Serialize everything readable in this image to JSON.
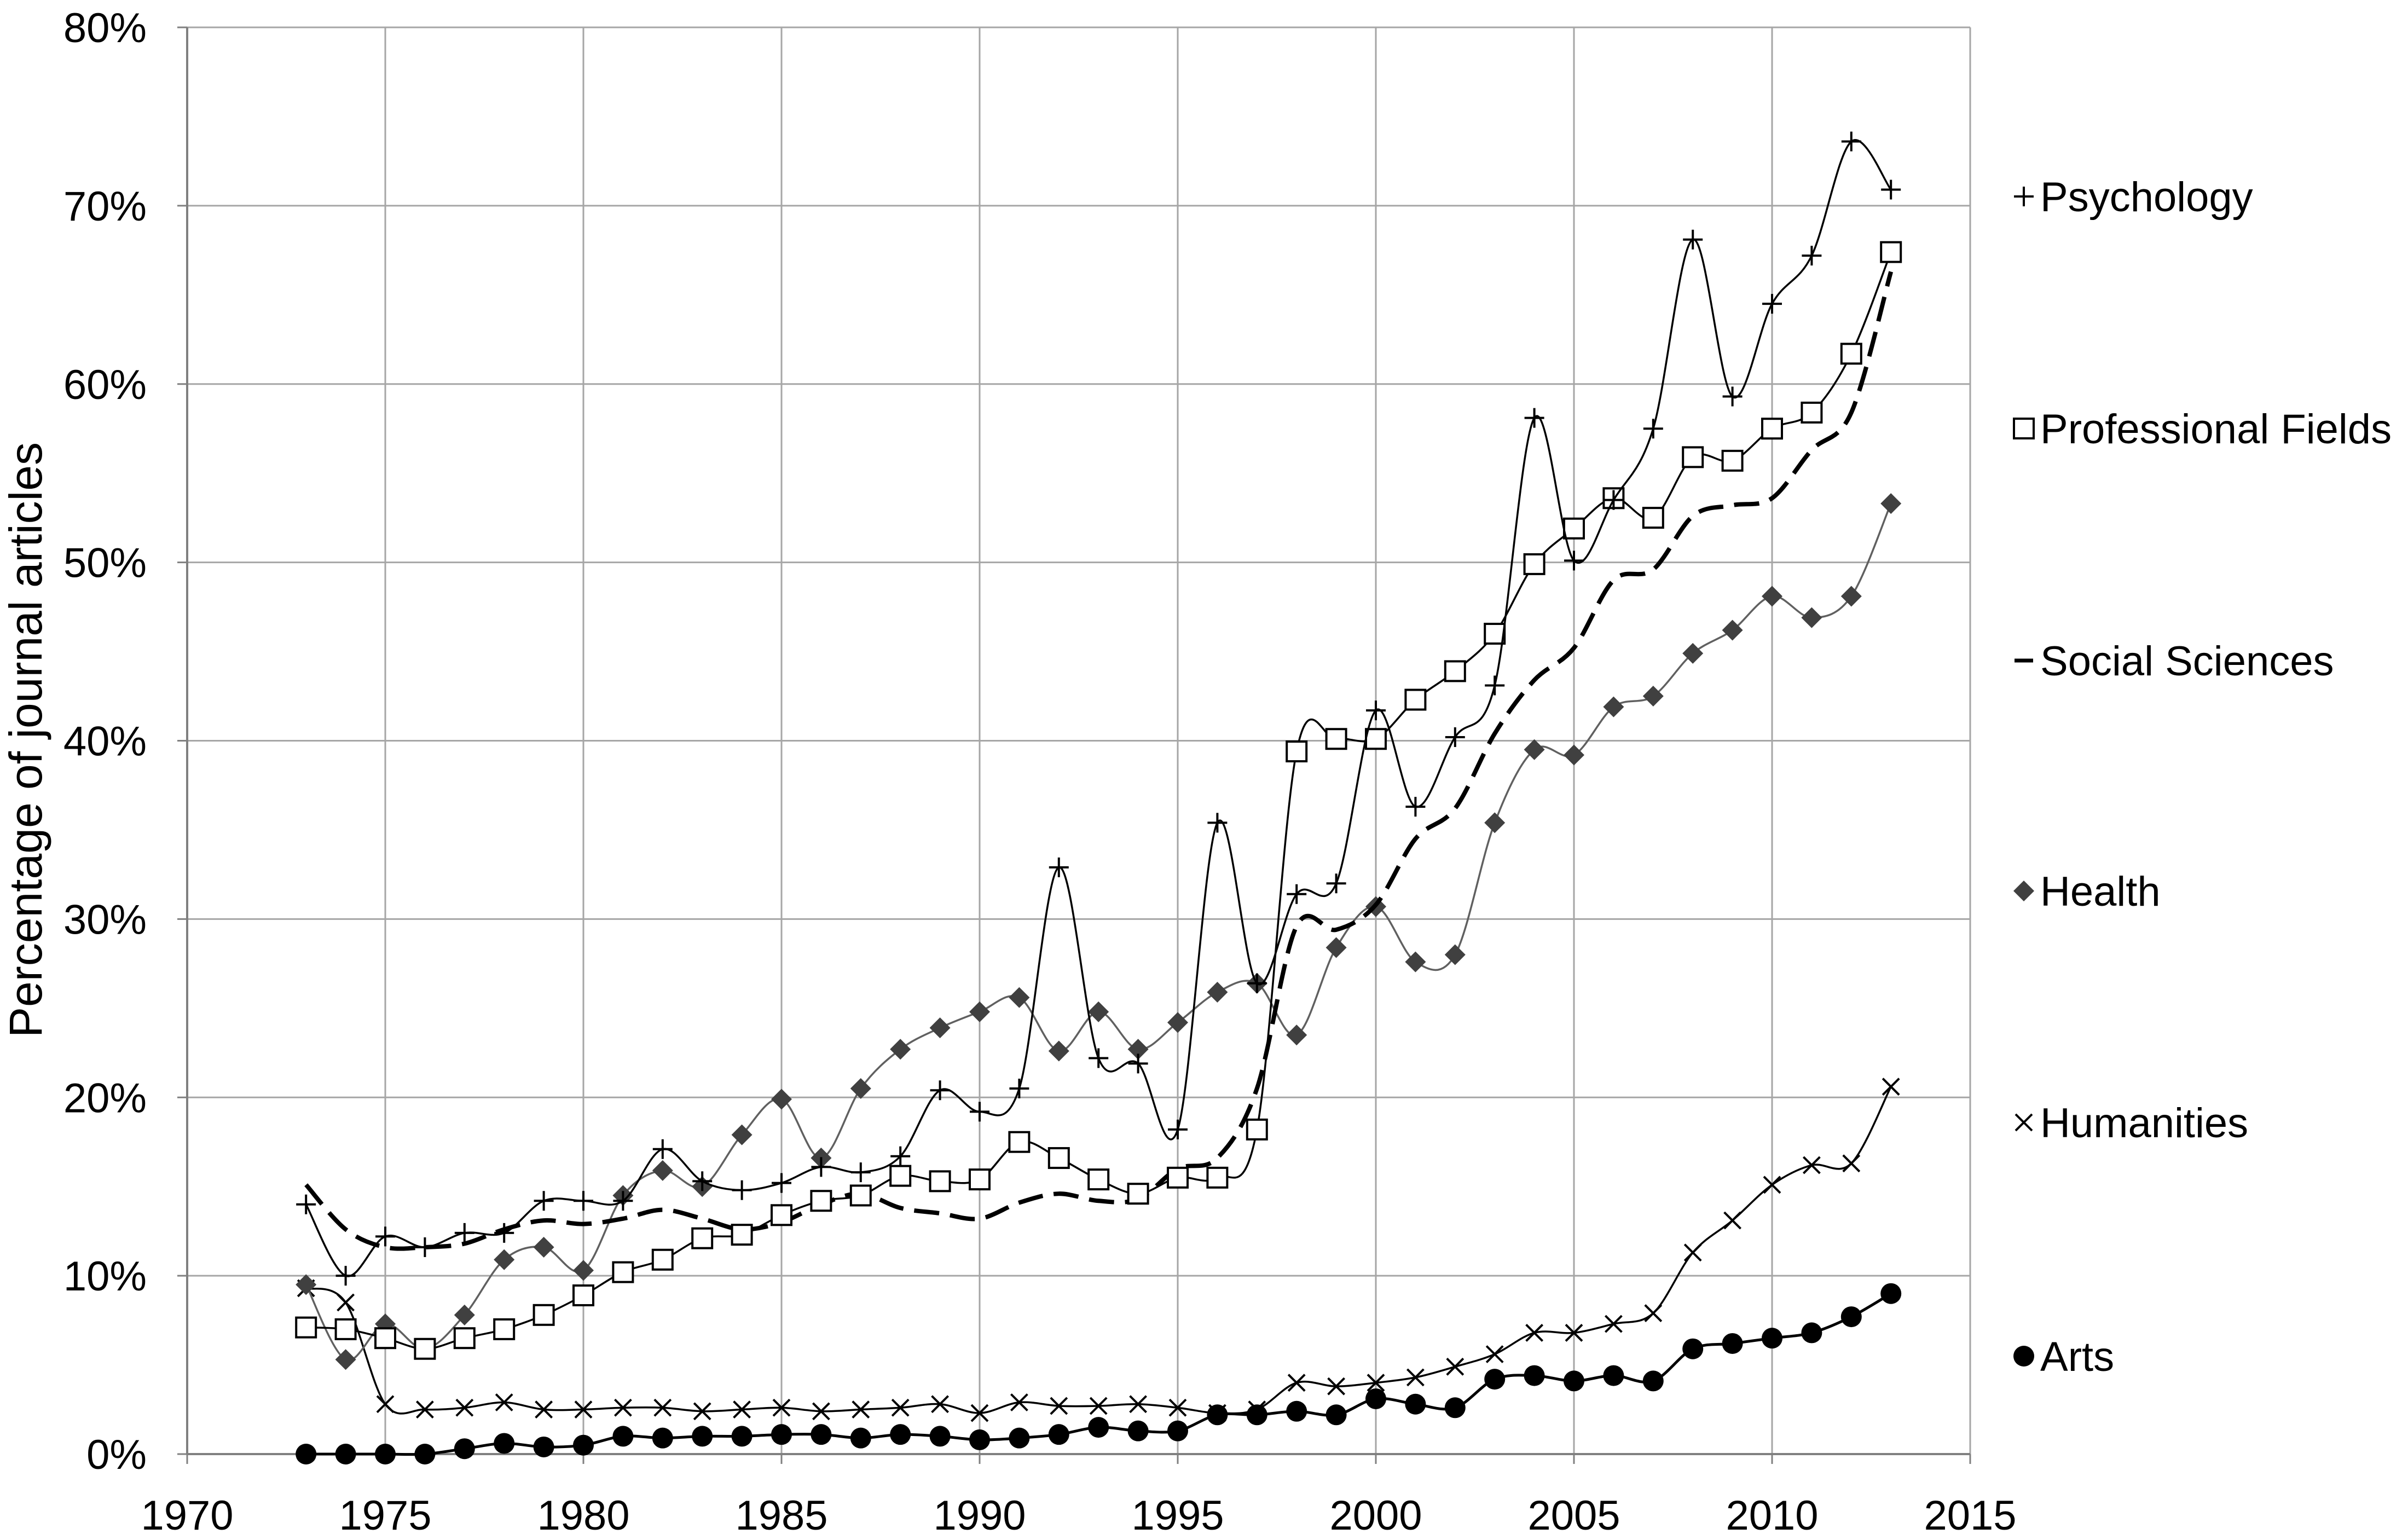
{
  "chart_data": {
    "type": "line",
    "smooth": true,
    "ylabel": "Percentage of journal articles",
    "xlim": [
      1970,
      2015
    ],
    "ylim": [
      0,
      80
    ],
    "xtick_values": [
      1970,
      1975,
      1980,
      1985,
      1990,
      1995,
      2000,
      2005,
      2010,
      2015
    ],
    "xtick_labels": [
      "1970",
      "1975",
      "1980",
      "1985",
      "1990",
      "1995",
      "2000",
      "2005",
      "2010",
      "2015"
    ],
    "ytick_values": [
      0,
      10,
      20,
      30,
      40,
      50,
      60,
      70,
      80
    ],
    "ytick_labels": [
      "0%",
      "10%",
      "20%",
      "30%",
      "40%",
      "50%",
      "60%",
      "70%",
      "80%"
    ],
    "grid": true,
    "grid_color": "#a6a6a6",
    "axis_color": "#808080",
    "legend_position": "right",
    "x": [
      1973,
      1974,
      1975,
      1976,
      1977,
      1978,
      1979,
      1980,
      1981,
      1982,
      1983,
      1984,
      1985,
      1986,
      1987,
      1988,
      1989,
      1990,
      1991,
      1992,
      1993,
      1994,
      1995,
      1996,
      1997,
      1998,
      1999,
      2000,
      2001,
      2002,
      2003,
      2004,
      2005,
      2006,
      2007,
      2008,
      2009,
      2010,
      2011,
      2012,
      2013
    ],
    "series": [
      {
        "name": "Psychology",
        "marker": "plus",
        "line": "solid",
        "color": "#000000",
        "values": [
          14.0,
          10.0,
          12.2,
          11.6,
          12.4,
          12.4,
          14.2,
          14.2,
          14.2,
          17.1,
          15.3,
          14.8,
          15.2,
          16.1,
          15.8,
          16.7,
          20.4,
          19.2,
          20.5,
          32.9,
          22.2,
          21.9,
          18.2,
          35.4,
          26.4,
          31.4,
          32.0,
          41.7,
          36.3,
          40.2,
          43.1,
          58.1,
          50.1,
          53.5,
          57.5,
          68.1,
          59.3,
          64.5,
          67.2,
          73.6,
          70.9
        ]
      },
      {
        "name": "Professional Fields",
        "marker": "square",
        "line": "solid",
        "color": "#000000",
        "values": [
          7.1,
          7.0,
          6.5,
          5.9,
          6.5,
          7.0,
          7.8,
          8.9,
          10.2,
          10.9,
          12.1,
          12.3,
          13.4,
          14.2,
          14.5,
          15.6,
          15.3,
          15.4,
          17.5,
          16.6,
          15.4,
          14.6,
          15.5,
          15.5,
          18.2,
          39.4,
          40.1,
          40.1,
          42.3,
          43.9,
          46.0,
          49.9,
          51.9,
          53.6,
          52.5,
          55.9,
          55.7,
          57.5,
          58.4,
          61.7,
          67.4
        ]
      },
      {
        "name": "Social Sciences",
        "marker": "none",
        "line": "dashed",
        "color": "#000000",
        "values": [
          15.1,
          12.6,
          11.6,
          11.6,
          11.8,
          12.6,
          13.1,
          12.9,
          13.2,
          13.7,
          13.2,
          12.6,
          13.0,
          14.0,
          14.6,
          13.8,
          13.5,
          13.2,
          14.1,
          14.6,
          14.2,
          14.3,
          16.0,
          16.6,
          20.5,
          29.6,
          29.4,
          30.8,
          34.5,
          36.2,
          40.4,
          43.4,
          45.2,
          49.0,
          49.6,
          52.6,
          53.2,
          53.6,
          56.3,
          58.4,
          66.3
        ]
      },
      {
        "name": "Health",
        "marker": "diamond",
        "line": "solid",
        "color": "#606060",
        "marker_color": "#404040",
        "values": [
          9.5,
          5.3,
          7.3,
          5.9,
          7.8,
          10.9,
          11.6,
          10.3,
          14.5,
          15.9,
          15.0,
          17.9,
          19.9,
          16.6,
          20.5,
          22.7,
          23.9,
          24.8,
          25.6,
          22.6,
          24.8,
          22.7,
          24.2,
          25.9,
          26.4,
          23.5,
          28.4,
          30.7,
          27.6,
          28.0,
          35.4,
          39.5,
          39.2,
          41.9,
          42.5,
          44.9,
          46.2,
          48.1,
          46.9,
          48.1,
          53.3
        ]
      },
      {
        "name": "Humanities",
        "marker": "cross",
        "line": "solid",
        "color": "#000000",
        "values": [
          9.3,
          8.5,
          2.8,
          2.5,
          2.6,
          2.9,
          2.5,
          2.5,
          2.6,
          2.6,
          2.4,
          2.5,
          2.6,
          2.4,
          2.5,
          2.6,
          2.8,
          2.3,
          2.9,
          2.7,
          2.7,
          2.8,
          2.6,
          2.3,
          2.5,
          4.0,
          3.8,
          4.0,
          4.3,
          4.9,
          5.6,
          6.8,
          6.8,
          7.3,
          7.9,
          11.3,
          13.1,
          15.1,
          16.2,
          16.3,
          20.6
        ]
      },
      {
        "name": "Arts",
        "marker": "circle",
        "line": "solid",
        "color": "#000000",
        "values": [
          0.0,
          0.0,
          0.0,
          0.0,
          0.3,
          0.6,
          0.4,
          0.5,
          1.0,
          0.9,
          1.0,
          1.0,
          1.1,
          1.1,
          0.9,
          1.1,
          1.0,
          0.8,
          0.9,
          1.1,
          1.5,
          1.3,
          1.3,
          2.2,
          2.2,
          2.4,
          2.2,
          3.1,
          2.8,
          2.6,
          4.2,
          4.4,
          4.1,
          4.4,
          4.1,
          5.9,
          6.2,
          6.5,
          6.8,
          7.7,
          9.0
        ]
      }
    ]
  }
}
